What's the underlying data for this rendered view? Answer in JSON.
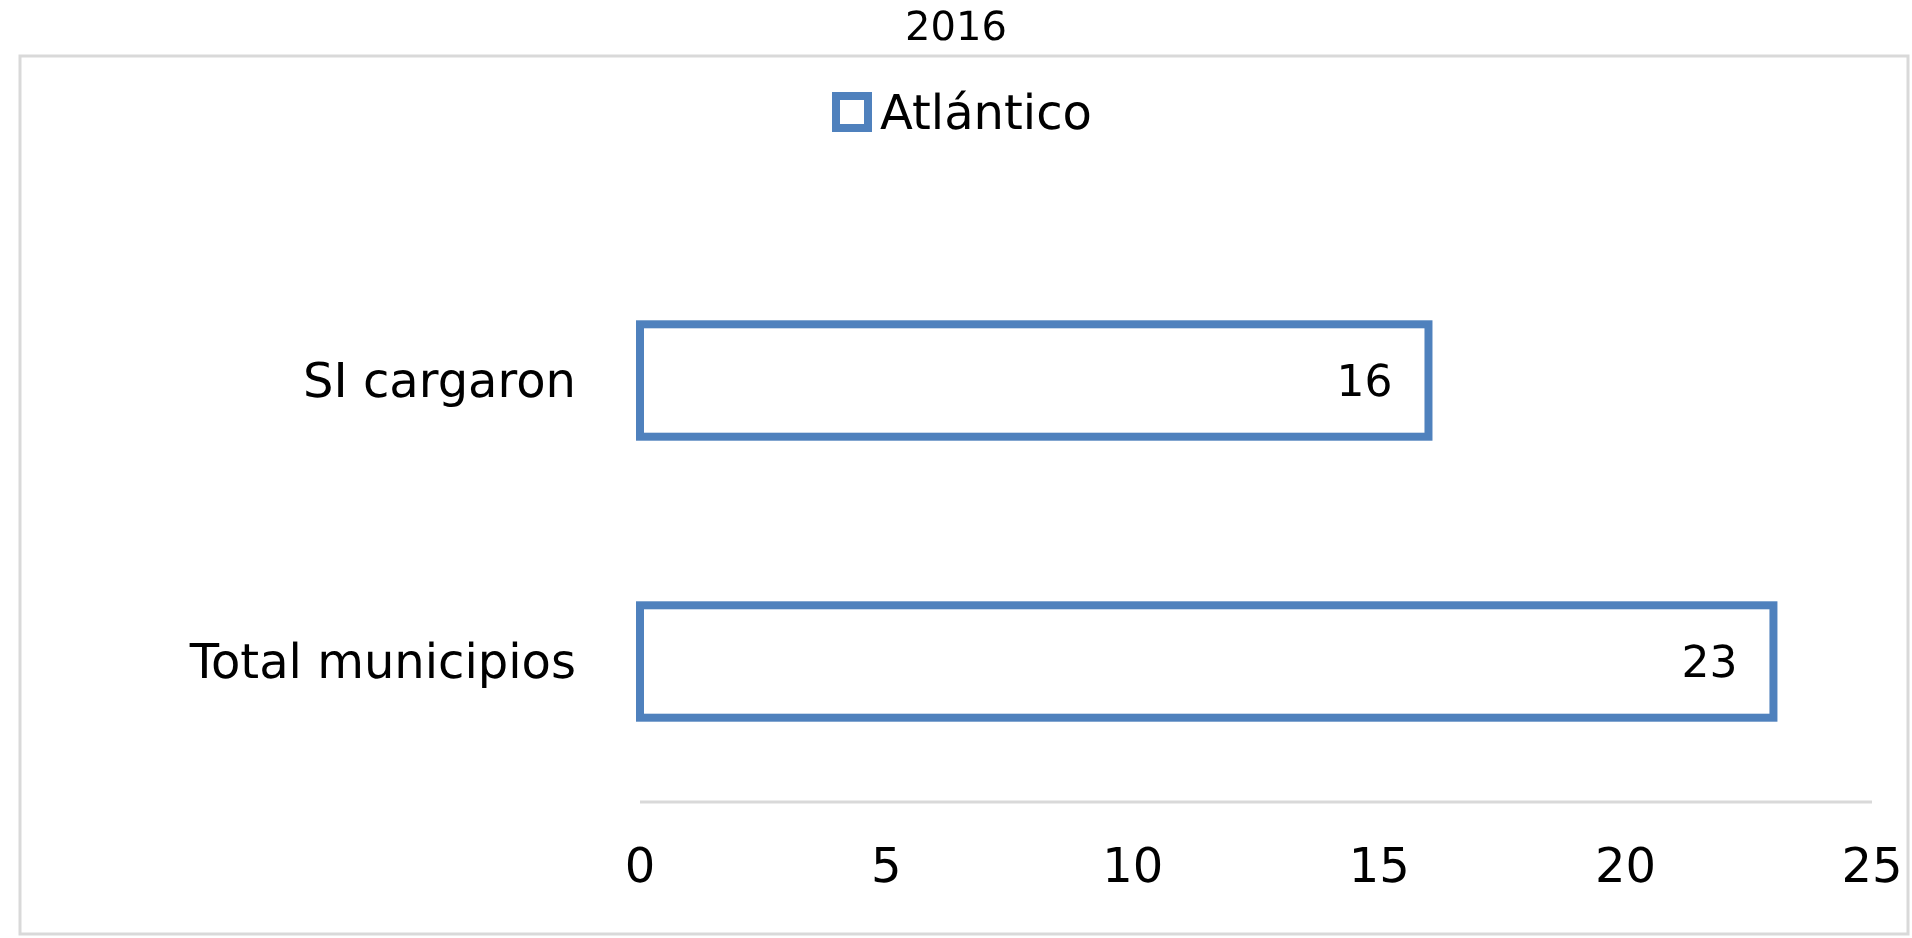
{
  "chart_data": {
    "type": "bar",
    "orientation": "horizontal",
    "title": "2016",
    "categories": [
      "SI cargaron",
      "Total municipios"
    ],
    "series": [
      {
        "name": "Atlántico",
        "color": "#4f81bd",
        "values": [
          16,
          23
        ]
      }
    ],
    "xlim": [
      0,
      25
    ],
    "xticks": [
      0,
      5,
      10,
      15,
      20,
      25
    ],
    "data_labels": true,
    "legend": "top",
    "grid": false
  }
}
